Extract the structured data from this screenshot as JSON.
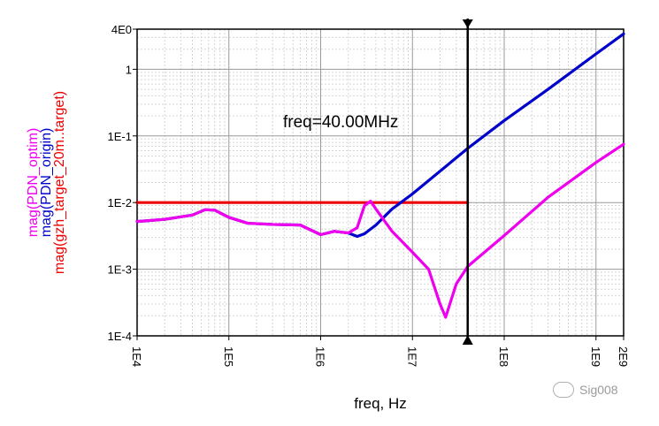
{
  "chart_data": {
    "type": "line",
    "xscale": "log",
    "yscale": "log",
    "xlim": [
      10000.0,
      2000000000.0
    ],
    "ylim": [
      0.0001,
      4
    ],
    "xlabel": "freq, Hz",
    "ylabel_lines": [
      "mag(PDN_optim)",
      "mag(PDN_origin)",
      "mag(gzh_target_20m..target)"
    ],
    "xtick_labels": [
      "1E4",
      "1E5",
      "1E6",
      "1E7",
      "1E8",
      "1E9",
      "2E9"
    ],
    "xticks": [
      10000.0,
      100000.0,
      1000000.0,
      10000000.0,
      100000000.0,
      1000000000.0,
      2000000000.0
    ],
    "ytick_labels": [
      "4E0",
      "1",
      "1E-1",
      "1E-2",
      "1E-3",
      "1E-4"
    ],
    "yticks": [
      4,
      1,
      0.1,
      0.01,
      0.001,
      0.0001
    ],
    "grid": true,
    "marker": {
      "x": 40000000,
      "label": "freq=40.00MHz"
    },
    "series": [
      {
        "name": "mag(gzh_target_20m..target)",
        "color": "#ee0000",
        "points": [
          [
            10000.0,
            0.01
          ],
          [
            40000000.0,
            0.01
          ]
        ]
      },
      {
        "name": "mag(PDN_origin)",
        "color": "#0000cc",
        "points": [
          [
            10000.0,
            0.0052
          ],
          [
            20000.0,
            0.0056
          ],
          [
            40000.0,
            0.0065
          ],
          [
            55000.0,
            0.0078
          ],
          [
            70000.0,
            0.0077
          ],
          [
            100000.0,
            0.006
          ],
          [
            160000.0,
            0.0049
          ],
          [
            300000.0,
            0.0047
          ],
          [
            600000.0,
            0.0046
          ],
          [
            1000000.0,
            0.0033
          ],
          [
            1400000.0,
            0.0037
          ],
          [
            2000000.0,
            0.0035
          ],
          [
            2500000.0,
            0.0031
          ],
          [
            3000000.0,
            0.0034
          ],
          [
            4000000.0,
            0.0046
          ],
          [
            6000000.0,
            0.008
          ],
          [
            10000000.0,
            0.0135
          ],
          [
            40000000.0,
            0.065
          ],
          [
            100000000.0,
            0.17
          ],
          [
            300000000.0,
            0.5
          ],
          [
            1000000000.0,
            1.7
          ],
          [
            2000000000.0,
            3.4
          ]
        ]
      },
      {
        "name": "mag(PDN_optim)",
        "color": "#ee00ee",
        "points": [
          [
            10000.0,
            0.0052
          ],
          [
            20000.0,
            0.0056
          ],
          [
            40000.0,
            0.0065
          ],
          [
            55000.0,
            0.0078
          ],
          [
            70000.0,
            0.0077
          ],
          [
            100000.0,
            0.006
          ],
          [
            160000.0,
            0.0049
          ],
          [
            300000.0,
            0.0047
          ],
          [
            600000.0,
            0.0046
          ],
          [
            1000000.0,
            0.0033
          ],
          [
            1400000.0,
            0.0037
          ],
          [
            2000000.0,
            0.0035
          ],
          [
            2500000.0,
            0.0042
          ],
          [
            3000000.0,
            0.009
          ],
          [
            3500000.0,
            0.0105
          ],
          [
            4000000.0,
            0.008
          ],
          [
            6000000.0,
            0.0037
          ],
          [
            10000000.0,
            0.0018
          ],
          [
            15000000.0,
            0.001
          ],
          [
            20000000.0,
            0.0003
          ],
          [
            23000000.0,
            0.00019
          ],
          [
            30000000.0,
            0.0006
          ],
          [
            40000000.0,
            0.0011
          ],
          [
            100000000.0,
            0.0032
          ],
          [
            300000000.0,
            0.012
          ],
          [
            1000000000.0,
            0.04
          ],
          [
            2000000000.0,
            0.075
          ]
        ]
      }
    ]
  },
  "watermark": {
    "text": "Sig008"
  }
}
